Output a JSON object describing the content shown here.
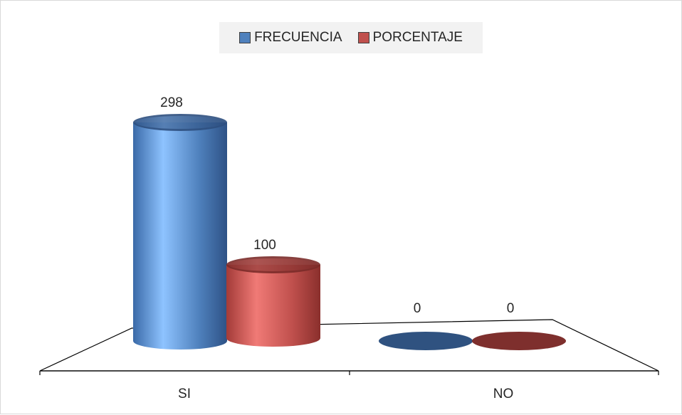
{
  "chart_data": {
    "type": "bar",
    "categories": [
      "SI",
      "NO"
    ],
    "series": [
      {
        "name": "FRECUENCIA",
        "values": [
          298,
          0
        ],
        "color": "#4f81bd"
      },
      {
        "name": "PORCENTAJE",
        "values": [
          100,
          0
        ],
        "color": "#c0504d"
      }
    ],
    "data_labels": [
      [
        "298",
        "0"
      ],
      [
        "100",
        "0"
      ]
    ],
    "legend_position": "top",
    "grid": false,
    "style": "3d-cylinder"
  }
}
